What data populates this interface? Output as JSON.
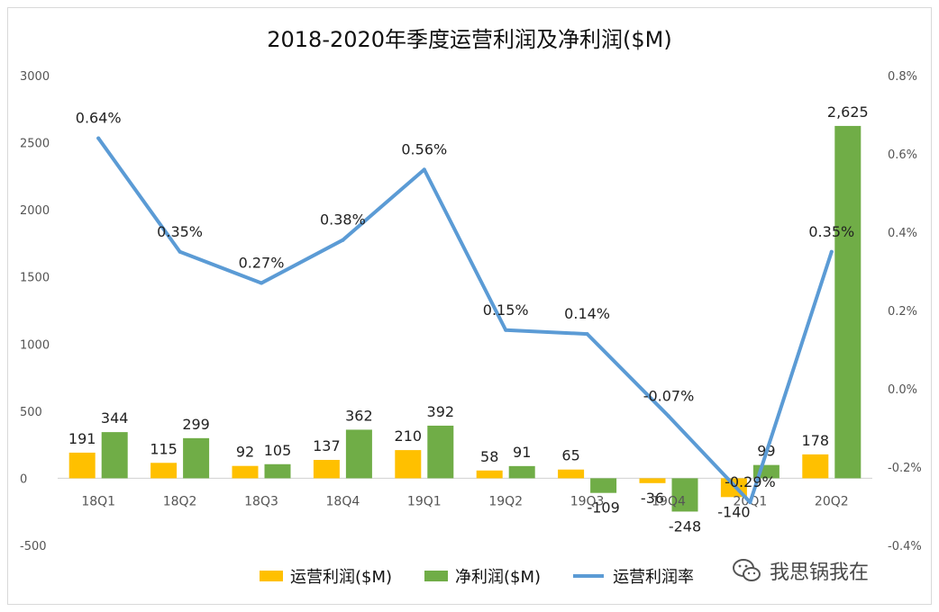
{
  "chart_data": {
    "type": "bar",
    "title": "2018-2020年季度运营利润及净利润($M)",
    "categories": [
      "18Q1",
      "18Q2",
      "18Q3",
      "18Q4",
      "19Q1",
      "19Q2",
      "19Q3",
      "19Q4",
      "20Q1",
      "20Q2"
    ],
    "series": [
      {
        "name": "运营利润($M)",
        "type": "bar",
        "axis": "left",
        "color": "#FFC000",
        "values": [
          191,
          115,
          92,
          137,
          210,
          58,
          65,
          -36,
          -140,
          178
        ],
        "labels": [
          "191",
          "115",
          "92",
          "137",
          "210",
          "58",
          "65",
          "-36",
          "-140",
          "178"
        ]
      },
      {
        "name": "净利润($M)",
        "type": "bar",
        "axis": "left",
        "color": "#70AD47",
        "values": [
          344,
          299,
          105,
          362,
          392,
          91,
          -109,
          -248,
          99,
          2625
        ],
        "labels": [
          "344",
          "299",
          "105",
          "362",
          "392",
          "91",
          "-109",
          "-248",
          "99",
          "2,625"
        ]
      },
      {
        "name": "运营利润率",
        "type": "line",
        "axis": "right",
        "color": "#5B9BD5",
        "values": [
          0.64,
          0.35,
          0.27,
          0.38,
          0.56,
          0.15,
          0.14,
          -0.07,
          -0.29,
          0.35
        ],
        "labels": [
          "0.64%",
          "0.35%",
          "0.27%",
          "0.38%",
          "0.56%",
          "0.15%",
          "0.14%",
          "-0.07%",
          "-0.29%",
          "0.35%"
        ]
      }
    ],
    "y_left": {
      "min": -500,
      "max": 3000,
      "ticks": [
        "-500",
        "0",
        "500",
        "1000",
        "1500",
        "2000",
        "2500",
        "3000"
      ]
    },
    "y_right": {
      "min": -0.4,
      "max": 0.8,
      "ticks": [
        "-0.4%",
        "-0.2%",
        "0.0%",
        "0.2%",
        "0.4%",
        "0.6%",
        "0.8%"
      ]
    },
    "grid": false,
    "legend_position": "bottom"
  },
  "watermark": {
    "text": "我思锅我在",
    "icon": "wechat-icon"
  }
}
